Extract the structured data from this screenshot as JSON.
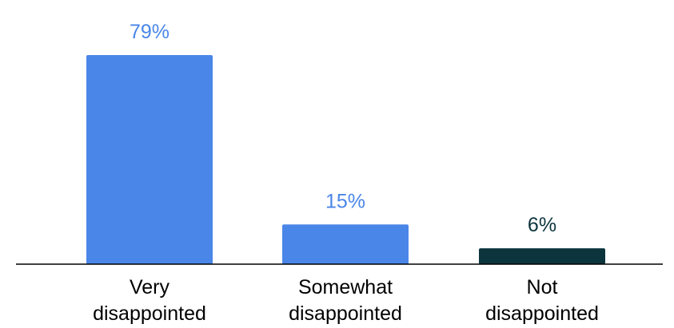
{
  "chart_data": {
    "type": "bar",
    "title": "",
    "xlabel": "",
    "ylabel": "",
    "ylim": [
      0,
      79
    ],
    "grid": false,
    "legend": "none",
    "categories": [
      [
        "Very",
        "disappointed"
      ],
      [
        "Somewhat",
        "disappointed"
      ],
      [
        "Not",
        "disappointed"
      ]
    ],
    "values": [
      79,
      15,
      6
    ],
    "data_labels": [
      "79%",
      "15%",
      "6%"
    ],
    "bar_colors": [
      "#4A86E8",
      "#4A86E8",
      "#0C343D"
    ],
    "label_colors": [
      "#4A86E8",
      "#4A86E8",
      "#0C343D"
    ],
    "axis_color": "#000000"
  }
}
